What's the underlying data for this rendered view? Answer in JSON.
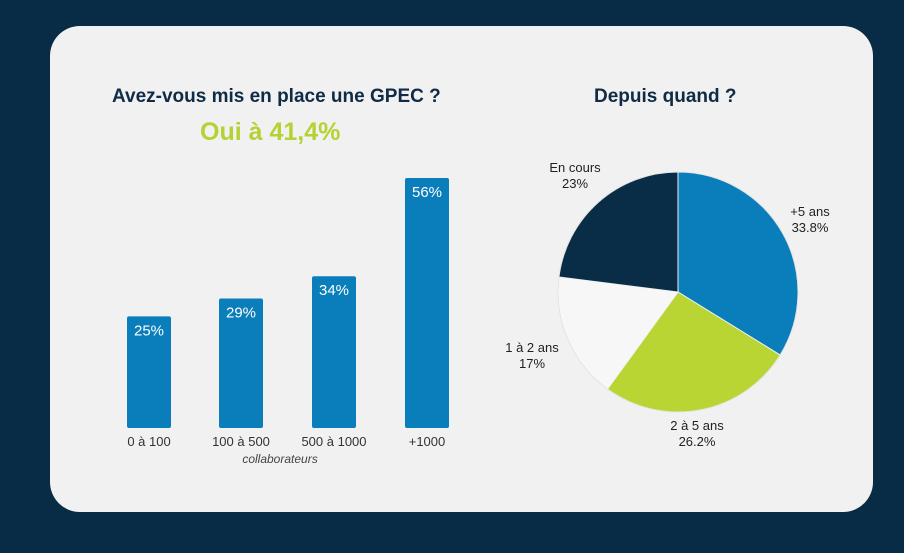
{
  "bar_chart": {
    "title": "Avez-vous mis en place une GPEC ?",
    "subtitle": "Oui à 41,4%",
    "x_note": "collaborateurs"
  },
  "pie_chart": {
    "title": "Depuis quand ?"
  },
  "colors": {
    "background": "#082c45",
    "card": "#f1f1f1",
    "bar": "#0a7dbb",
    "accent_green": "#b4d233",
    "pie_navy": "#0a2d47",
    "pie_blue": "#0a7dbb",
    "pie_green": "#b9d533",
    "pie_white": "#f7f7f7"
  },
  "chart_data": [
    {
      "type": "bar",
      "title": "Avez-vous mis en place une GPEC ?",
      "subtitle": "Oui à 41,4%",
      "categories": [
        "0 à 100",
        "100 à 500",
        "500 à 1000",
        "+1000"
      ],
      "values": [
        25,
        29,
        34,
        56
      ],
      "value_labels": [
        "25%",
        "29%",
        "34%",
        "56%"
      ],
      "xlabel": "collaborateurs",
      "ylabel": "",
      "ylim": [
        0,
        60
      ],
      "grid": false
    },
    {
      "type": "pie",
      "title": "Depuis quand ?",
      "slices": [
        {
          "label": "+5 ans",
          "value": 33.8,
          "value_label": "33.8%",
          "color": "#0a7dbb"
        },
        {
          "label": "2 à 5 ans",
          "value": 26.2,
          "value_label": "26.2%",
          "color": "#b9d533"
        },
        {
          "label": "1 à 2 ans",
          "value": 17,
          "value_label": "17%",
          "color": "#f7f7f7"
        },
        {
          "label": "En cours",
          "value": 23,
          "value_label": "23%",
          "color": "#0a2d47"
        }
      ]
    }
  ]
}
